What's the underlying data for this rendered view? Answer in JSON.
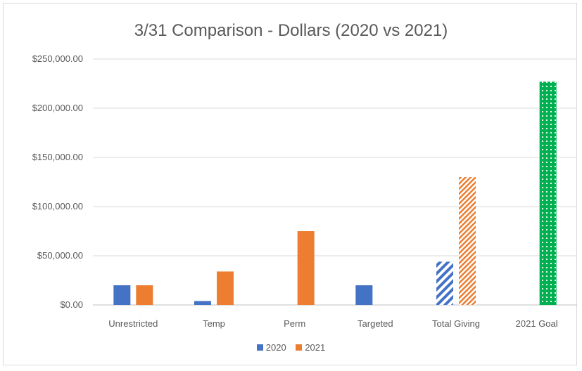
{
  "chart_data": {
    "type": "bar",
    "title": "3/31 Comparison - Dollars (2020 vs 2021)",
    "categories": [
      "Unrestricted",
      "Temp",
      "Perm",
      "Targeted",
      "Total Giving",
      "2021 Goal"
    ],
    "series": [
      {
        "name": "2020",
        "color": "#4472c4",
        "values": [
          20000,
          4000,
          0,
          20000,
          44000,
          0
        ]
      },
      {
        "name": "2021",
        "color": "#ed7d31",
        "values": [
          20000,
          34000,
          75000,
          0,
          130000,
          227000
        ]
      }
    ],
    "special_fills": {
      "Total Giving": "diagonal-hatch",
      "2021 Goal": "green-dotted"
    },
    "goal_color": "#00b050",
    "ylim": [
      0,
      250000
    ],
    "y_ticks": [
      0,
      50000,
      100000,
      150000,
      200000,
      250000
    ],
    "y_tick_labels": [
      "$0.00",
      "$50,000.00",
      "$100,000.00",
      "$150,000.00",
      "$200,000.00",
      "$250,000.00"
    ],
    "grid": true,
    "legend_position": "bottom",
    "xlabel": "",
    "ylabel": ""
  }
}
